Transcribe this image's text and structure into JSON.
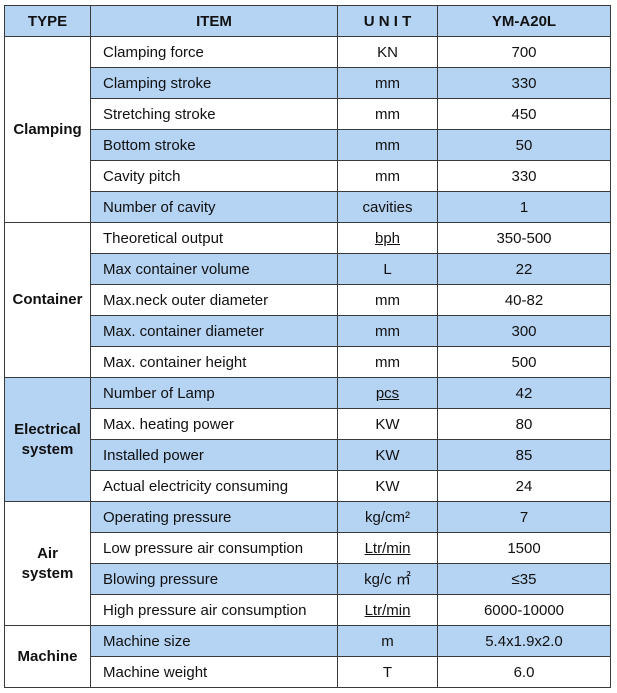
{
  "header": {
    "type": "TYPE",
    "item": "ITEM",
    "unit": "U N I T",
    "model": "YM-A20L"
  },
  "groups": [
    {
      "type": "Clamping",
      "rows": [
        {
          "item": "Clamping force",
          "unit": "KN",
          "value": "700"
        },
        {
          "item": "Clamping stroke",
          "unit": "mm",
          "value": "330"
        },
        {
          "item": "Stretching stroke",
          "unit": "mm",
          "value": "450"
        },
        {
          "item": "Bottom stroke",
          "unit": "mm",
          "value": "50"
        },
        {
          "item": "Cavity pitch",
          "unit": "mm",
          "value": "330"
        },
        {
          "item": "Number of cavity",
          "unit": "cavities",
          "value": "1"
        }
      ]
    },
    {
      "type": "Container",
      "rows": [
        {
          "item": "Theoretical output",
          "unit": "bph",
          "value": "350-500"
        },
        {
          "item": "Max container volume",
          "unit": "L",
          "value": "22"
        },
        {
          "item": "Max.neck outer diameter",
          "unit": "mm",
          "value": "40-82"
        },
        {
          "item": "Max. container diameter",
          "unit": "mm",
          "value": "300"
        },
        {
          "item": "Max. container height",
          "unit": "mm",
          "value": "500"
        }
      ]
    },
    {
      "type_lines": [
        "Electrical",
        "system"
      ],
      "rows": [
        {
          "item": "Number of Lamp",
          "unit": "pcs",
          "value": "42"
        },
        {
          "item": "Max. heating power",
          "unit": "KW",
          "value": "80"
        },
        {
          "item": "Installed power",
          "unit": "KW",
          "value": "85"
        },
        {
          "item": "Actual electricity consuming",
          "unit": "KW",
          "value": "24"
        }
      ]
    },
    {
      "type_lines": [
        "Air",
        "system"
      ],
      "rows": [
        {
          "item": "Operating pressure",
          "unit": "kg/cm²",
          "value": "7"
        },
        {
          "item": "Low pressure air consumption",
          "unit": "Ltr/min",
          "value": "1500"
        },
        {
          "item": "Blowing pressure",
          "unit": "kg/c ㎡",
          "value": "≤35"
        },
        {
          "item": "High pressure air consumption",
          "unit": "Ltr/min",
          "value": "6000-10000"
        }
      ]
    },
    {
      "type": "Machine",
      "rows": [
        {
          "item": "Machine size",
          "unit": "m",
          "value": "5.4x1.9x2.0"
        },
        {
          "item": "Machine weight",
          "unit": "T",
          "value": "6.0"
        }
      ]
    }
  ]
}
